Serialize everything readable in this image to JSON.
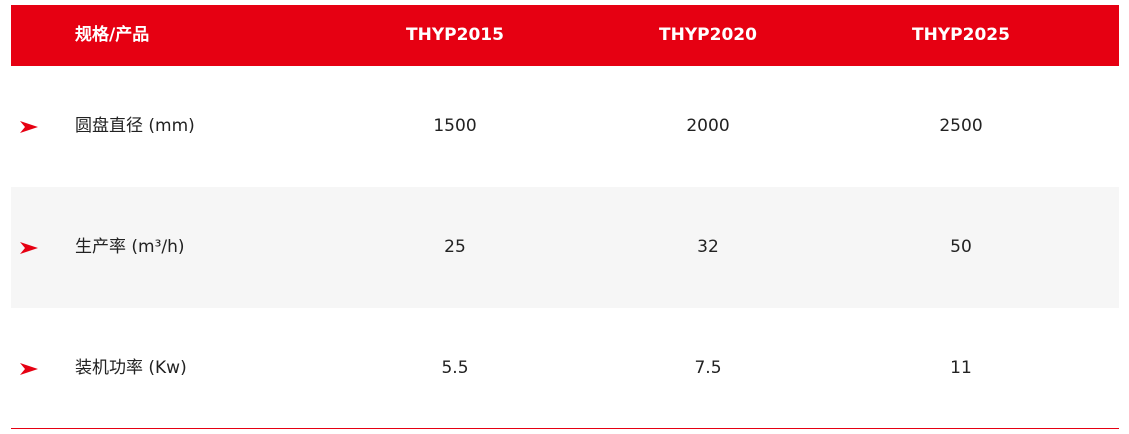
{
  "table": {
    "header": [
      "规格/产品",
      "THYP2015",
      "THYP2020",
      "THYP2025"
    ],
    "rows": [
      [
        "圆盘直径 (mm)",
        1500,
        2000,
        2500
      ],
      [
        "生产率 (m³/h)",
        25,
        32,
        50
      ],
      [
        "装机功率 (Kw)",
        5.5,
        7.5,
        11
      ]
    ]
  }
}
